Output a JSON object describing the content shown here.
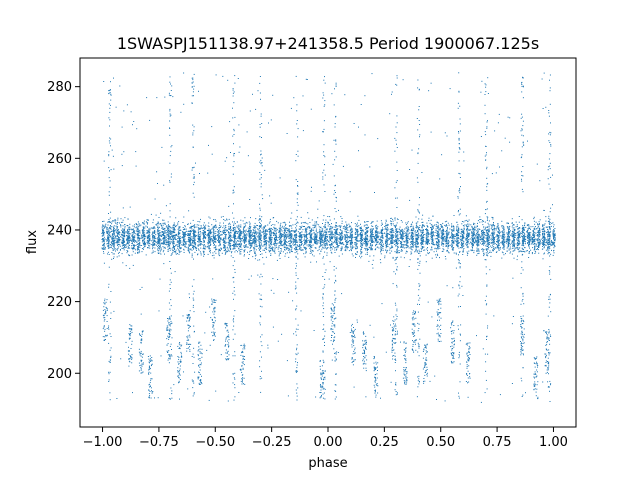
{
  "chart_data": {
    "type": "scatter",
    "title": "1SWASPJ151138.97+241358.5 Period 1900067.125s",
    "xlabel": "phase",
    "ylabel": "flux",
    "xlim": [
      -1.1,
      1.1
    ],
    "ylim": [
      185,
      288
    ],
    "xticks": [
      -1.0,
      -0.75,
      -0.5,
      -0.25,
      0.0,
      0.25,
      0.5,
      0.75,
      1.0
    ],
    "xtick_labels": [
      "−1.00",
      "−0.75",
      "−0.50",
      "−0.25",
      "0.00",
      "0.25",
      "0.50",
      "0.75",
      "1.00"
    ],
    "yticks": [
      200,
      220,
      240,
      260,
      280
    ],
    "ytick_labels": [
      "200",
      "220",
      "240",
      "260",
      "280"
    ],
    "grid": false,
    "marker_color": "#1f77b4",
    "band": {
      "center": 238,
      "core_low": 232,
      "core_high": 244
    },
    "dropout_clusters": [
      {
        "x": -0.99,
        "y": 215
      },
      {
        "x": -0.88,
        "y": 208
      },
      {
        "x": -0.83,
        "y": 206
      },
      {
        "x": -0.79,
        "y": 199
      },
      {
        "x": -0.71,
        "y": 210
      },
      {
        "x": -0.66,
        "y": 203
      },
      {
        "x": -0.62,
        "y": 212
      },
      {
        "x": -0.57,
        "y": 203
      },
      {
        "x": -0.51,
        "y": 215
      },
      {
        "x": -0.45,
        "y": 209
      },
      {
        "x": -0.38,
        "y": 203
      },
      {
        "x": -0.03,
        "y": 199
      },
      {
        "x": 0.02,
        "y": 214
      },
      {
        "x": 0.11,
        "y": 208
      },
      {
        "x": 0.16,
        "y": 206
      },
      {
        "x": 0.21,
        "y": 199
      },
      {
        "x": 0.29,
        "y": 210
      },
      {
        "x": 0.34,
        "y": 203
      },
      {
        "x": 0.38,
        "y": 212
      },
      {
        "x": 0.43,
        "y": 203
      },
      {
        "x": 0.49,
        "y": 215
      },
      {
        "x": 0.55,
        "y": 209
      },
      {
        "x": 0.62,
        "y": 203
      },
      {
        "x": 0.86,
        "y": 211
      },
      {
        "x": 0.92,
        "y": 199
      },
      {
        "x": 0.97,
        "y": 206
      }
    ],
    "spike_phases": [
      -0.97,
      -0.7,
      -0.6,
      -0.42,
      -0.3,
      -0.14,
      -0.02,
      0.03,
      0.3,
      0.4,
      0.58,
      0.7,
      0.86,
      0.98
    ]
  }
}
